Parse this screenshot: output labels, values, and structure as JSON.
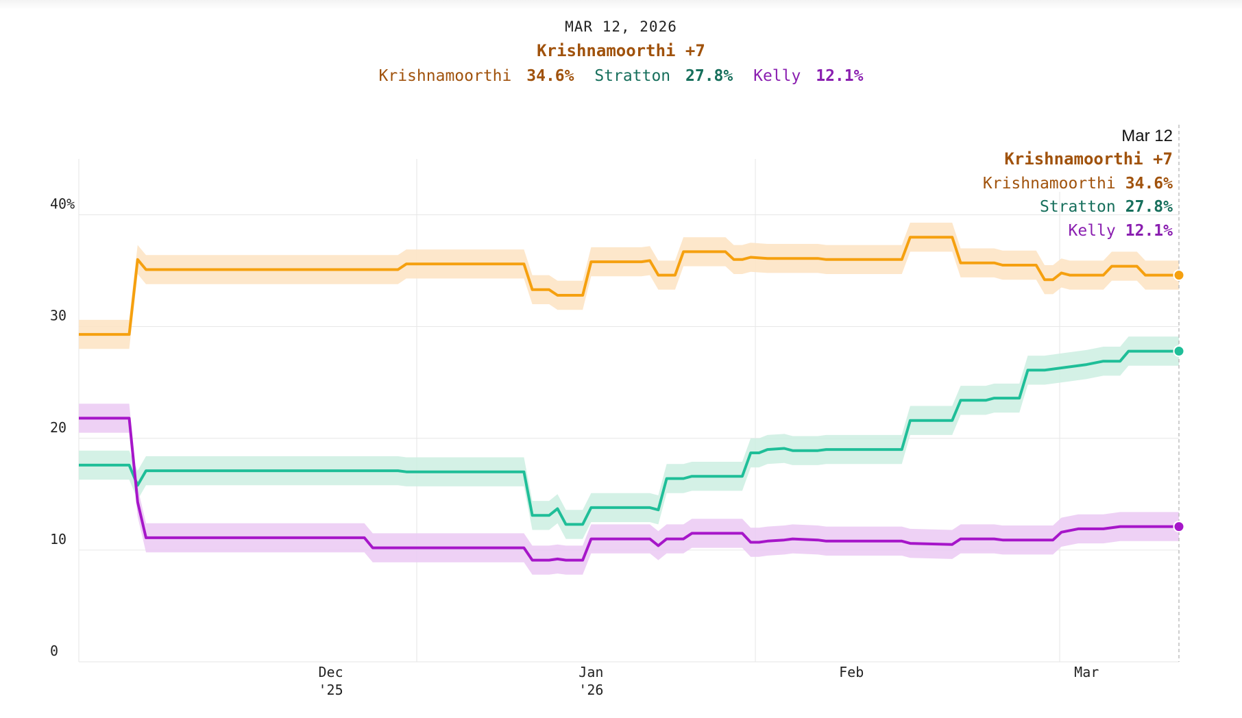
{
  "header": {
    "date": "MAR 12, 2026",
    "lead": "Krishnamoorthi +7",
    "candidates": [
      {
        "name": "Krishnamoorthi",
        "value": "34.6%"
      },
      {
        "name": "Stratton",
        "value": "27.8%"
      },
      {
        "name": "Kelly",
        "value": "12.1%"
      }
    ]
  },
  "tooltip": {
    "date": "Mar 12",
    "lead": "Krishnamoorthi +7",
    "rows": [
      {
        "name": "Krishnamoorthi",
        "value": "34.6%"
      },
      {
        "name": "Stratton",
        "value": "27.8%"
      },
      {
        "name": "Kelly",
        "value": "12.1%"
      }
    ]
  },
  "colors": {
    "krishnamoorthi": "#f5a00f",
    "krishnamoorthi_text": "#a0520c",
    "krishnamoorthi_band": "#fde3c2",
    "stratton": "#1fbe98",
    "stratton_text": "#176f5c",
    "stratton_band": "#cdeee2",
    "kelly": "#a616c9",
    "kelly_text": "#8a1fb0",
    "kelly_band": "#ebc9f3",
    "grid": "#e6e6e6",
    "axis_text": "#222222"
  },
  "chart_data": {
    "type": "line",
    "title": "MAR 12, 2026",
    "xlabel": "",
    "ylabel": "",
    "ylim": [
      0,
      45
    ],
    "xlim": [
      "2025-11-01",
      "2026-03-12"
    ],
    "y_ticks": [
      0,
      10,
      20,
      30,
      40
    ],
    "y_tick_labels": [
      "0",
      "10",
      "20",
      "30",
      "40%"
    ],
    "x_ticks": [
      {
        "date": "2025-12-01",
        "label": "Dec",
        "sublabel": "'25"
      },
      {
        "date": "2026-01-01",
        "label": "Jan",
        "sublabel": "'26"
      },
      {
        "date": "2026-02-01",
        "label": "Feb",
        "sublabel": ""
      },
      {
        "date": "2026-03-01",
        "label": "Mar",
        "sublabel": ""
      }
    ],
    "band_halfwidth": 1.3,
    "series": [
      {
        "name": "Krishnamoorthi",
        "key": "krishnamoorthi",
        "end_label": "34.6%",
        "points": [
          {
            "x": "2025-11-01",
            "y": 29.3
          },
          {
            "x": "2025-11-07",
            "y": 29.3
          },
          {
            "x": "2025-11-08",
            "y": 36.0
          },
          {
            "x": "2025-11-09",
            "y": 35.1
          },
          {
            "x": "2025-11-24",
            "y": 35.1
          },
          {
            "x": "2025-12-09",
            "y": 35.1
          },
          {
            "x": "2025-12-10",
            "y": 35.6
          },
          {
            "x": "2025-12-24",
            "y": 35.6
          },
          {
            "x": "2025-12-25",
            "y": 33.3
          },
          {
            "x": "2025-12-27",
            "y": 33.3
          },
          {
            "x": "2025-12-28",
            "y": 32.8
          },
          {
            "x": "2025-12-31",
            "y": 32.8
          },
          {
            "x": "2026-01-01",
            "y": 35.8
          },
          {
            "x": "2026-01-07",
            "y": 35.8
          },
          {
            "x": "2026-01-08",
            "y": 35.9
          },
          {
            "x": "2026-01-09",
            "y": 34.6
          },
          {
            "x": "2026-01-11",
            "y": 34.6
          },
          {
            "x": "2026-01-12",
            "y": 36.7
          },
          {
            "x": "2026-01-17",
            "y": 36.7
          },
          {
            "x": "2026-01-18",
            "y": 36.0
          },
          {
            "x": "2026-01-19",
            "y": 36.0
          },
          {
            "x": "2026-01-20",
            "y": 36.2
          },
          {
            "x": "2026-01-22",
            "y": 36.1
          },
          {
            "x": "2026-01-28",
            "y": 36.1
          },
          {
            "x": "2026-01-29",
            "y": 36.0
          },
          {
            "x": "2026-02-01",
            "y": 36.0
          },
          {
            "x": "2026-02-07",
            "y": 36.0
          },
          {
            "x": "2026-02-08",
            "y": 38.0
          },
          {
            "x": "2026-02-13",
            "y": 38.0
          },
          {
            "x": "2026-02-14",
            "y": 35.7
          },
          {
            "x": "2026-02-18",
            "y": 35.7
          },
          {
            "x": "2026-02-19",
            "y": 35.5
          },
          {
            "x": "2026-02-23",
            "y": 35.5
          },
          {
            "x": "2026-02-24",
            "y": 34.2
          },
          {
            "x": "2026-02-25",
            "y": 34.2
          },
          {
            "x": "2026-02-26",
            "y": 34.8
          },
          {
            "x": "2026-02-27",
            "y": 34.6
          },
          {
            "x": "2026-03-03",
            "y": 34.6
          },
          {
            "x": "2026-03-04",
            "y": 35.4
          },
          {
            "x": "2026-03-07",
            "y": 35.4
          },
          {
            "x": "2026-03-08",
            "y": 34.6
          },
          {
            "x": "2026-03-12",
            "y": 34.6
          }
        ]
      },
      {
        "name": "Stratton",
        "key": "stratton",
        "end_label": "27.8%",
        "points": [
          {
            "x": "2025-11-01",
            "y": 17.6
          },
          {
            "x": "2025-11-07",
            "y": 17.6
          },
          {
            "x": "2025-11-08",
            "y": 15.8
          },
          {
            "x": "2025-11-09",
            "y": 17.1
          },
          {
            "x": "2025-11-24",
            "y": 17.1
          },
          {
            "x": "2025-12-09",
            "y": 17.1
          },
          {
            "x": "2025-12-10",
            "y": 17.0
          },
          {
            "x": "2025-12-24",
            "y": 17.0
          },
          {
            "x": "2025-12-25",
            "y": 13.1
          },
          {
            "x": "2025-12-27",
            "y": 13.1
          },
          {
            "x": "2025-12-28",
            "y": 13.7
          },
          {
            "x": "2025-12-29",
            "y": 12.3
          },
          {
            "x": "2025-12-31",
            "y": 12.3
          },
          {
            "x": "2026-01-01",
            "y": 13.8
          },
          {
            "x": "2026-01-08",
            "y": 13.8
          },
          {
            "x": "2026-01-09",
            "y": 13.6
          },
          {
            "x": "2026-01-10",
            "y": 16.4
          },
          {
            "x": "2026-01-12",
            "y": 16.4
          },
          {
            "x": "2026-01-13",
            "y": 16.6
          },
          {
            "x": "2026-01-19",
            "y": 16.6
          },
          {
            "x": "2026-01-20",
            "y": 18.7
          },
          {
            "x": "2026-01-21",
            "y": 18.7
          },
          {
            "x": "2026-01-22",
            "y": 19.0
          },
          {
            "x": "2026-01-24",
            "y": 19.1
          },
          {
            "x": "2026-01-25",
            "y": 18.9
          },
          {
            "x": "2026-01-28",
            "y": 18.9
          },
          {
            "x": "2026-01-29",
            "y": 19.0
          },
          {
            "x": "2026-02-07",
            "y": 19.0
          },
          {
            "x": "2026-02-08",
            "y": 21.6
          },
          {
            "x": "2026-02-13",
            "y": 21.6
          },
          {
            "x": "2026-02-14",
            "y": 23.4
          },
          {
            "x": "2026-02-17",
            "y": 23.4
          },
          {
            "x": "2026-02-18",
            "y": 23.6
          },
          {
            "x": "2026-02-21",
            "y": 23.6
          },
          {
            "x": "2026-02-22",
            "y": 26.1
          },
          {
            "x": "2026-02-24",
            "y": 26.1
          },
          {
            "x": "2026-02-26",
            "y": 26.3
          },
          {
            "x": "2026-03-01",
            "y": 26.6
          },
          {
            "x": "2026-03-03",
            "y": 26.9
          },
          {
            "x": "2026-03-05",
            "y": 26.9
          },
          {
            "x": "2026-03-06",
            "y": 27.8
          },
          {
            "x": "2026-03-12",
            "y": 27.8
          }
        ]
      },
      {
        "name": "Kelly",
        "key": "kelly",
        "end_label": "12.1%",
        "points": [
          {
            "x": "2025-11-01",
            "y": 21.8
          },
          {
            "x": "2025-11-07",
            "y": 21.8
          },
          {
            "x": "2025-11-08",
            "y": 14.3
          },
          {
            "x": "2025-11-09",
            "y": 11.1
          },
          {
            "x": "2025-11-24",
            "y": 11.1
          },
          {
            "x": "2025-12-05",
            "y": 11.1
          },
          {
            "x": "2025-12-06",
            "y": 10.2
          },
          {
            "x": "2025-12-24",
            "y": 10.2
          },
          {
            "x": "2025-12-25",
            "y": 9.1
          },
          {
            "x": "2025-12-27",
            "y": 9.1
          },
          {
            "x": "2025-12-28",
            "y": 9.2
          },
          {
            "x": "2025-12-29",
            "y": 9.1
          },
          {
            "x": "2025-12-31",
            "y": 9.1
          },
          {
            "x": "2026-01-01",
            "y": 11.0
          },
          {
            "x": "2026-01-08",
            "y": 11.0
          },
          {
            "x": "2026-01-09",
            "y": 10.4
          },
          {
            "x": "2026-01-10",
            "y": 11.0
          },
          {
            "x": "2026-01-12",
            "y": 11.0
          },
          {
            "x": "2026-01-13",
            "y": 11.5
          },
          {
            "x": "2026-01-19",
            "y": 11.5
          },
          {
            "x": "2026-01-20",
            "y": 10.7
          },
          {
            "x": "2026-01-21",
            "y": 10.7
          },
          {
            "x": "2026-01-22",
            "y": 10.8
          },
          {
            "x": "2026-01-24",
            "y": 10.9
          },
          {
            "x": "2026-01-25",
            "y": 11.0
          },
          {
            "x": "2026-01-28",
            "y": 10.9
          },
          {
            "x": "2026-01-29",
            "y": 10.8
          },
          {
            "x": "2026-02-07",
            "y": 10.8
          },
          {
            "x": "2026-02-08",
            "y": 10.6
          },
          {
            "x": "2026-02-13",
            "y": 10.5
          },
          {
            "x": "2026-02-14",
            "y": 11.0
          },
          {
            "x": "2026-02-18",
            "y": 11.0
          },
          {
            "x": "2026-02-19",
            "y": 10.9
          },
          {
            "x": "2026-02-25",
            "y": 10.9
          },
          {
            "x": "2026-02-26",
            "y": 11.6
          },
          {
            "x": "2026-02-28",
            "y": 11.9
          },
          {
            "x": "2026-03-03",
            "y": 11.9
          },
          {
            "x": "2026-03-05",
            "y": 12.1
          },
          {
            "x": "2026-03-12",
            "y": 12.1
          }
        ]
      }
    ]
  }
}
